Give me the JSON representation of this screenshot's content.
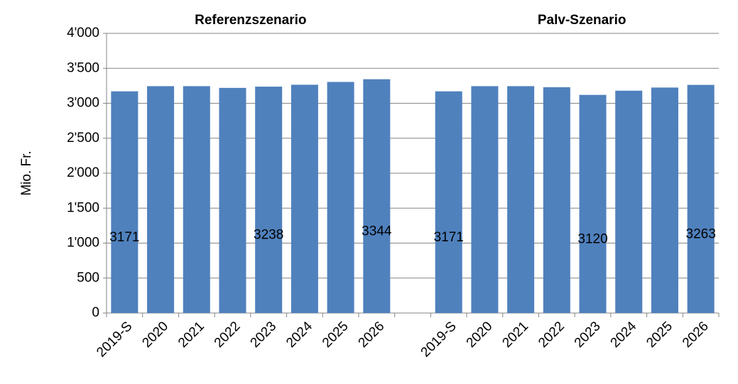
{
  "chart_data": {
    "type": "bar",
    "y_label": "Mio. Fr.",
    "annotations": [
      "Referenzszenario",
      "Palv-Szenario"
    ],
    "categories": [
      "2019-S",
      "2020",
      "2021",
      "2022",
      "2023",
      "2024",
      "2025",
      "2026",
      null,
      "2019-S",
      "2020",
      "2021",
      "2022",
      "2023",
      "2024",
      "2025",
      "2026"
    ],
    "values": [
      3171,
      3245,
      3245,
      3220,
      3238,
      3265,
      3305,
      3344,
      null,
      3171,
      3245,
      3245,
      3230,
      3120,
      3180,
      3225,
      3263
    ],
    "value_labels": [
      "3171",
      null,
      null,
      null,
      "3238",
      null,
      null,
      "3344",
      null,
      "3171",
      null,
      null,
      null,
      "3120",
      null,
      null,
      "3263"
    ],
    "color": "#4f81bd",
    "ylim": [
      0,
      4000
    ],
    "yticks": [
      0,
      500,
      {
        "value": 1000,
        "label": "1'000"
      },
      {
        "value": 1500,
        "label": "1'500"
      },
      {
        "value": 2000,
        "label": "2'000"
      },
      {
        "value": 2500,
        "label": "2'500"
      },
      {
        "value": 3000,
        "label": "3'000"
      },
      {
        "value": 3500,
        "label": "3'500"
      },
      {
        "value": 4000,
        "label": "4'000"
      }
    ],
    "grid": true
  }
}
